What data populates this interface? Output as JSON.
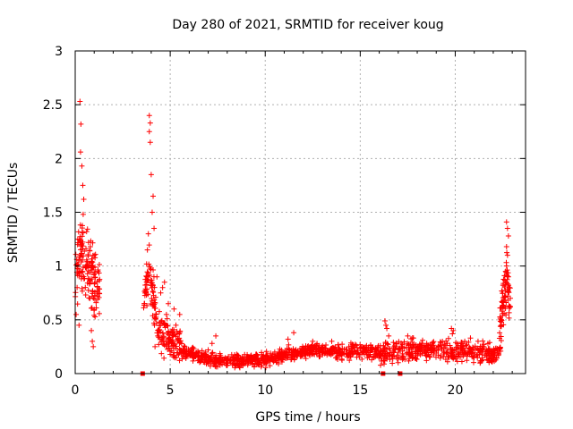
{
  "chart_data": {
    "type": "scatter",
    "title": "Day 280 of 2021, SRMTID for receiver koug",
    "xlabel": "GPS time / hours",
    "ylabel": "SRMTID / TECUs",
    "xlim": [
      0,
      23.7
    ],
    "ylim": [
      0,
      3
    ],
    "xticks": [
      0,
      5,
      10,
      15,
      20
    ],
    "yticks": [
      0,
      0.5,
      1,
      1.5,
      2,
      2.5,
      3
    ],
    "ytick_labels": [
      "0",
      "0.5",
      "1",
      "1.5",
      "2",
      "2.5",
      "3"
    ],
    "grid": true,
    "marker": "+",
    "series": [
      {
        "name": "SRMTID",
        "color": "#ff0000",
        "segments": [
          {
            "x0": 0.0,
            "x1": 1.3,
            "n": 160,
            "base": [
              [
                0,
                0.9
              ],
              [
                0.3,
                1.1
              ],
              [
                0.6,
                1.0
              ],
              [
                1.0,
                0.85
              ],
              [
                1.3,
                0.75
              ]
            ],
            "spread": 0.45,
            "min": 0.25
          },
          {
            "x0": 3.6,
            "x1": 5.6,
            "n": 190,
            "base": [
              [
                3.6,
                0.7
              ],
              [
                3.9,
                1.0
              ],
              [
                4.2,
                0.6
              ],
              [
                4.5,
                0.35
              ],
              [
                5.0,
                0.3
              ],
              [
                5.6,
                0.25
              ]
            ],
            "spread": 0.28,
            "min": 0.12
          },
          {
            "x0": 5.6,
            "x1": 11.0,
            "n": 420,
            "base": [
              [
                5.6,
                0.2
              ],
              [
                7.0,
                0.13
              ],
              [
                8.0,
                0.12
              ],
              [
                9.0,
                0.12
              ],
              [
                10.0,
                0.13
              ],
              [
                11.0,
                0.17
              ]
            ],
            "spread": 0.09,
            "min": 0.04
          },
          {
            "x0": 11.0,
            "x1": 16.0,
            "n": 360,
            "base": [
              [
                11.0,
                0.18
              ],
              [
                12.5,
                0.22
              ],
              [
                14.0,
                0.2
              ],
              [
                15.0,
                0.21
              ],
              [
                16.0,
                0.2
              ]
            ],
            "spread": 0.09,
            "min": 0.08
          },
          {
            "x0": 16.0,
            "x1": 22.3,
            "n": 420,
            "base": [
              [
                16.0,
                0.18
              ],
              [
                17.5,
                0.22
              ],
              [
                19.0,
                0.22
              ],
              [
                20.5,
                0.2
              ],
              [
                22.3,
                0.18
              ]
            ],
            "spread": 0.14,
            "min": 0.07
          },
          {
            "x0": 22.3,
            "x1": 22.9,
            "n": 90,
            "base": [
              [
                22.3,
                0.3
              ],
              [
                22.5,
                0.6
              ],
              [
                22.7,
                0.9
              ],
              [
                22.9,
                0.65
              ]
            ],
            "spread": 0.35,
            "min": 0.2
          }
        ],
        "points": [
          [
            0.25,
            2.53
          ],
          [
            0.3,
            2.32
          ],
          [
            0.28,
            2.06
          ],
          [
            0.35,
            1.93
          ],
          [
            0.4,
            1.75
          ],
          [
            0.45,
            1.62
          ],
          [
            0.42,
            1.48
          ],
          [
            0.6,
            1.32
          ],
          [
            0.7,
            1.22
          ],
          [
            0.8,
            1.18
          ],
          [
            1.0,
            1.1
          ],
          [
            1.2,
            0.95
          ],
          [
            0.9,
            0.3
          ],
          [
            0.85,
            0.4
          ],
          [
            0.95,
            0.25
          ],
          [
            0.2,
            0.45
          ],
          [
            0.1,
            0.8
          ],
          [
            0.05,
            0.55
          ],
          [
            3.9,
            2.4
          ],
          [
            3.95,
            2.33
          ],
          [
            3.9,
            2.25
          ],
          [
            3.95,
            2.15
          ],
          [
            4.0,
            1.85
          ],
          [
            4.1,
            1.65
          ],
          [
            4.05,
            1.5
          ],
          [
            4.15,
            1.35
          ],
          [
            3.85,
            1.3
          ],
          [
            3.8,
            1.15
          ],
          [
            4.3,
            0.9
          ],
          [
            4.5,
            0.75
          ],
          [
            4.6,
            0.8
          ],
          [
            4.7,
            0.85
          ],
          [
            4.9,
            0.65
          ],
          [
            4.8,
            0.55
          ],
          [
            5.2,
            0.6
          ],
          [
            5.3,
            0.45
          ],
          [
            5.5,
            0.55
          ],
          [
            5.5,
            0.38
          ],
          [
            4.2,
            0.25
          ],
          [
            7.0,
            0.22
          ],
          [
            7.2,
            0.28
          ],
          [
            7.4,
            0.35
          ],
          [
            8.5,
            0.18
          ],
          [
            9.5,
            0.15
          ],
          [
            10.5,
            0.2
          ],
          [
            11.2,
            0.32
          ],
          [
            11.5,
            0.38
          ],
          [
            12.5,
            0.3
          ],
          [
            13.5,
            0.3
          ],
          [
            16.3,
            0.49
          ],
          [
            16.35,
            0.45
          ],
          [
            16.4,
            0.42
          ],
          [
            16.5,
            0.35
          ],
          [
            17.5,
            0.35
          ],
          [
            17.8,
            0.33
          ],
          [
            18.5,
            0.28
          ],
          [
            19.8,
            0.42
          ],
          [
            19.9,
            0.4
          ],
          [
            19.85,
            0.37
          ],
          [
            20.5,
            0.3
          ],
          [
            20.8,
            0.33
          ],
          [
            21.2,
            0.3
          ],
          [
            21.5,
            0.25
          ],
          [
            22.7,
            1.41
          ],
          [
            22.75,
            1.35
          ],
          [
            22.8,
            1.28
          ],
          [
            22.7,
            1.18
          ],
          [
            22.75,
            1.1
          ],
          [
            22.7,
            1.0
          ],
          [
            22.65,
            0.95
          ],
          [
            22.8,
            0.9
          ],
          [
            22.7,
            0.85
          ],
          [
            22.85,
            0.8
          ],
          [
            22.6,
            0.72
          ],
          [
            22.9,
            0.7
          ],
          [
            22.9,
            0.62
          ]
        ],
        "zero_markers": [
          3.55,
          16.2,
          17.1
        ]
      }
    ]
  }
}
